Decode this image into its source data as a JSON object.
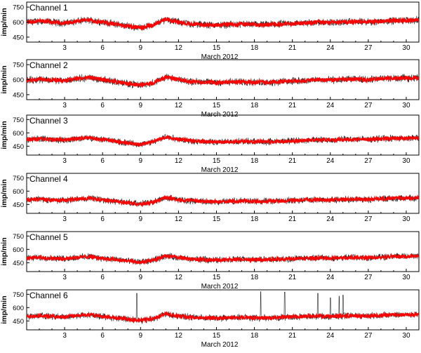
{
  "colors": {
    "trace": "#ff0000",
    "raw": "#222222",
    "axis": "#000000",
    "background": "#ffffff"
  },
  "chart_data": [
    {
      "type": "line",
      "title": "Channel 1",
      "xlabel": "March 2012",
      "ylabel": "imp/min",
      "xlim": [
        0,
        31
      ],
      "ylim": [
        400,
        800
      ],
      "xticks": [
        3,
        6,
        9,
        12,
        15,
        18,
        21,
        24,
        27,
        30
      ],
      "yticks": [
        450,
        600,
        750
      ],
      "grid": false,
      "series": [
        {
          "x": [
            0,
            1,
            2,
            3,
            4,
            5,
            6,
            7,
            8,
            9,
            10,
            11,
            12,
            13,
            14,
            15,
            16,
            17,
            18,
            19,
            20,
            21,
            22,
            23,
            24,
            25,
            26,
            27,
            28,
            29,
            30,
            31
          ],
          "values": [
            600,
            610,
            600,
            590,
            610,
            620,
            600,
            580,
            560,
            545,
            570,
            630,
            600,
            580,
            575,
            570,
            575,
            580,
            575,
            575,
            580,
            585,
            590,
            600,
            595,
            600,
            605,
            600,
            610,
            615,
            615,
            620
          ]
        }
      ],
      "spikes": []
    },
    {
      "type": "line",
      "title": "Channel 2",
      "xlabel": "March 2012",
      "ylabel": "imp/min",
      "xlim": [
        0,
        31
      ],
      "ylim": [
        400,
        800
      ],
      "xticks": [
        3,
        6,
        9,
        12,
        15,
        18,
        21,
        24,
        27,
        30
      ],
      "yticks": [
        450,
        600,
        750
      ],
      "grid": false,
      "series": [
        {
          "x": [
            0,
            1,
            2,
            3,
            4,
            5,
            6,
            7,
            8,
            9,
            10,
            11,
            12,
            13,
            14,
            15,
            16,
            17,
            18,
            19,
            20,
            21,
            22,
            23,
            24,
            25,
            26,
            27,
            28,
            29,
            30,
            31
          ],
          "values": [
            595,
            605,
            595,
            590,
            610,
            620,
            600,
            580,
            560,
            545,
            570,
            625,
            600,
            580,
            575,
            570,
            575,
            580,
            575,
            575,
            580,
            585,
            590,
            600,
            595,
            600,
            605,
            600,
            610,
            615,
            615,
            620
          ]
        }
      ],
      "spikes": []
    },
    {
      "type": "line",
      "title": "Channel 3",
      "xlabel": "March 2012",
      "ylabel": "imp/min",
      "xlim": [
        0,
        31
      ],
      "ylim": [
        350,
        800
      ],
      "xticks": [
        3,
        6,
        9,
        12,
        15,
        18,
        21,
        24,
        27,
        30
      ],
      "yticks": [
        450,
        600,
        750
      ],
      "grid": false,
      "series": [
        {
          "x": [
            0,
            1,
            2,
            3,
            4,
            5,
            6,
            7,
            8,
            9,
            10,
            11,
            12,
            13,
            14,
            15,
            16,
            17,
            18,
            19,
            20,
            21,
            22,
            23,
            24,
            25,
            26,
            27,
            28,
            29,
            30,
            31
          ],
          "values": [
            525,
            535,
            525,
            520,
            535,
            545,
            525,
            505,
            485,
            470,
            500,
            555,
            530,
            510,
            500,
            495,
            500,
            505,
            500,
            500,
            505,
            510,
            515,
            525,
            520,
            525,
            530,
            525,
            535,
            540,
            540,
            545
          ]
        }
      ],
      "spikes": []
    },
    {
      "type": "line",
      "title": "Channel 4",
      "xlabel": "",
      "ylabel": "imp/min",
      "xlim": [
        0,
        31
      ],
      "ylim": [
        350,
        800
      ],
      "xticks": [
        3,
        6,
        9,
        12,
        15,
        18,
        21,
        24,
        27,
        30
      ],
      "yticks": [
        450,
        600,
        750
      ],
      "grid": false,
      "series": [
        {
          "x": [
            0,
            1,
            2,
            3,
            4,
            5,
            6,
            7,
            8,
            9,
            10,
            11,
            12,
            13,
            14,
            15,
            16,
            17,
            18,
            19,
            20,
            21,
            22,
            23,
            24,
            25,
            26,
            27,
            28,
            29,
            30,
            31
          ],
          "values": [
            500,
            510,
            500,
            495,
            510,
            520,
            500,
            485,
            470,
            455,
            475,
            530,
            505,
            490,
            485,
            480,
            485,
            490,
            485,
            485,
            490,
            495,
            500,
            505,
            500,
            505,
            510,
            505,
            515,
            520,
            520,
            525
          ]
        }
      ],
      "spikes": []
    },
    {
      "type": "line",
      "title": "Channel 5",
      "xlabel": "March 2012",
      "ylabel": "imp/min",
      "xlim": [
        0,
        31
      ],
      "ylim": [
        350,
        800
      ],
      "xticks": [
        3,
        6,
        9,
        12,
        15,
        18,
        21,
        24,
        27,
        30
      ],
      "yticks": [
        450,
        600,
        750
      ],
      "grid": false,
      "series": [
        {
          "x": [
            0,
            1,
            2,
            3,
            4,
            5,
            6,
            7,
            8,
            9,
            10,
            11,
            12,
            13,
            14,
            15,
            16,
            17,
            18,
            19,
            20,
            21,
            22,
            23,
            24,
            25,
            26,
            27,
            28,
            29,
            30,
            31
          ],
          "values": [
            500,
            510,
            500,
            495,
            510,
            520,
            500,
            485,
            470,
            455,
            475,
            530,
            505,
            490,
            485,
            480,
            485,
            490,
            485,
            485,
            490,
            495,
            500,
            505,
            500,
            505,
            510,
            505,
            515,
            520,
            520,
            525
          ]
        }
      ],
      "spikes": []
    },
    {
      "type": "line",
      "title": "Channel 6",
      "xlabel": "March 2012",
      "ylabel": "imp/min",
      "xlim": [
        0,
        31
      ],
      "ylim": [
        350,
        800
      ],
      "xticks": [
        3,
        6,
        9,
        12,
        15,
        18,
        21,
        24,
        27,
        30
      ],
      "yticks": [
        450,
        600,
        750
      ],
      "grid": false,
      "series": [
        {
          "x": [
            0,
            1,
            2,
            3,
            4,
            5,
            6,
            7,
            8,
            9,
            10,
            11,
            12,
            13,
            14,
            15,
            16,
            17,
            18,
            19,
            20,
            21,
            22,
            23,
            24,
            25,
            26,
            27,
            28,
            29,
            30,
            31
          ],
          "values": [
            500,
            510,
            500,
            495,
            510,
            520,
            500,
            485,
            470,
            455,
            475,
            530,
            505,
            490,
            485,
            480,
            485,
            490,
            485,
            485,
            490,
            495,
            500,
            505,
            500,
            505,
            510,
            505,
            515,
            520,
            520,
            525
          ]
        }
      ],
      "spikes": [
        {
          "x": 8.7,
          "y": 760
        },
        {
          "x": 18.5,
          "y": 780
        },
        {
          "x": 20.4,
          "y": 775
        },
        {
          "x": 23.0,
          "y": 760
        },
        {
          "x": 24.0,
          "y": 710
        },
        {
          "x": 24.7,
          "y": 730
        },
        {
          "x": 25.0,
          "y": 740
        }
      ]
    }
  ]
}
